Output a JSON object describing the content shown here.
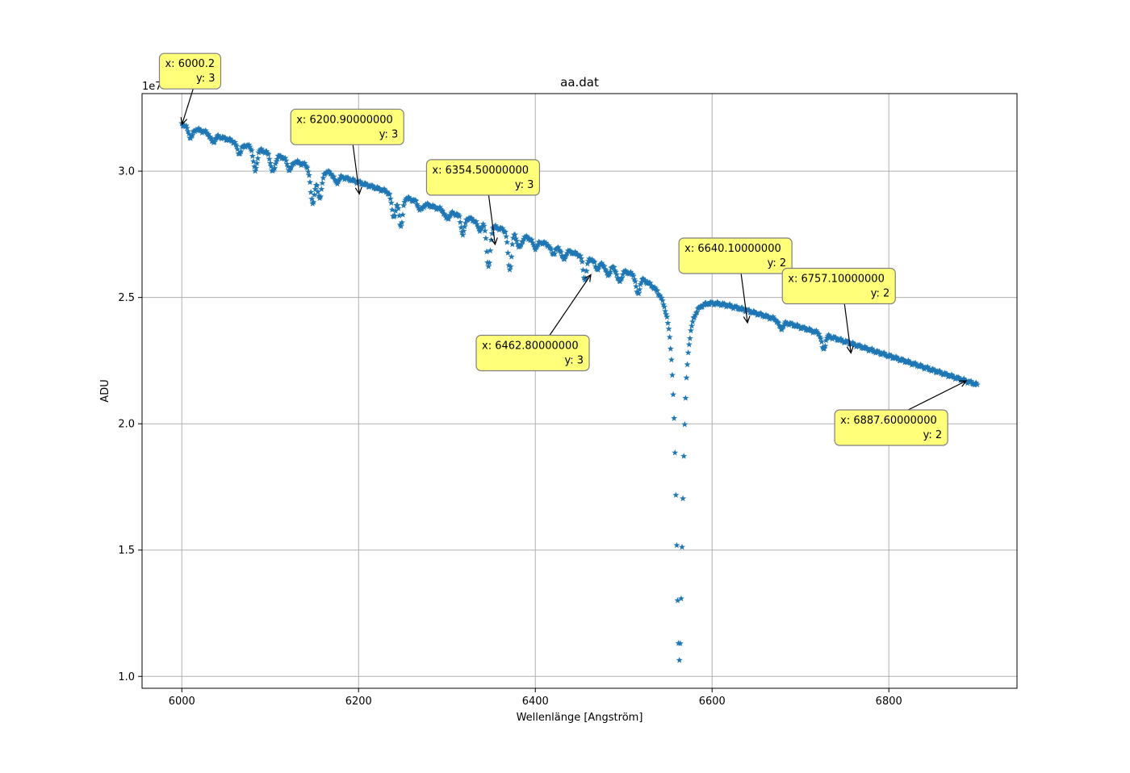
{
  "chart_data": {
    "type": "scatter",
    "title": "aa.dat",
    "xlabel": "Wellenlänge [Angström]",
    "ylabel": "ADU",
    "y_offset_label": "1e7",
    "xlim": [
      5955,
      6945
    ],
    "ylim": [
      0.953,
      3.307
    ],
    "xticks": [
      6000,
      6200,
      6400,
      6600,
      6800
    ],
    "yticks": [
      1.0,
      1.5,
      2.0,
      2.5,
      3.0
    ],
    "xtick_labels": [
      "6000",
      "6200",
      "6400",
      "6600",
      "6800"
    ],
    "ytick_labels": [
      "1.0",
      "1.5",
      "2.0",
      "2.5",
      "3.0"
    ],
    "grid": true,
    "marker": "star",
    "marker_color": "#1f77b4",
    "series_description": "Spectrum, ADU in units of 1e7; continuum falls from ~3.18 at 6000 to ~2.16 at 6900 with absorption lines, deep H-alpha line near 6563",
    "continuum": {
      "x": [
        6000,
        6900
      ],
      "y": [
        3.185,
        2.155
      ]
    },
    "dips": [
      {
        "center": 6010,
        "depth": 0.04,
        "width": 2.5
      },
      {
        "center": 6035,
        "depth": 0.03,
        "width": 2.5
      },
      {
        "center": 6065,
        "depth": 0.04,
        "width": 2.5
      },
      {
        "center": 6083,
        "depth": 0.09,
        "width": 2.0
      },
      {
        "center": 6103,
        "depth": 0.07,
        "width": 2.5
      },
      {
        "center": 6122,
        "depth": 0.04,
        "width": 2.5
      },
      {
        "center": 6148,
        "depth": 0.14,
        "width": 2.5
      },
      {
        "center": 6156,
        "depth": 0.11,
        "width": 2.5
      },
      {
        "center": 6175,
        "depth": 0.03,
        "width": 2.5
      },
      {
        "center": 6240,
        "depth": 0.09,
        "width": 2.5
      },
      {
        "center": 6248,
        "depth": 0.12,
        "width": 2.0
      },
      {
        "center": 6270,
        "depth": 0.03,
        "width": 2.5
      },
      {
        "center": 6300,
        "depth": 0.03,
        "width": 2.5
      },
      {
        "center": 6318,
        "depth": 0.07,
        "width": 2.0
      },
      {
        "center": 6337,
        "depth": 0.03,
        "width": 2.5
      },
      {
        "center": 6347,
        "depth": 0.17,
        "width": 2.0
      },
      {
        "center": 6371,
        "depth": 0.15,
        "width": 2.0
      },
      {
        "center": 6382,
        "depth": 0.05,
        "width": 2.5
      },
      {
        "center": 6400,
        "depth": 0.03,
        "width": 2.5
      },
      {
        "center": 6420,
        "depth": 0.03,
        "width": 2.5
      },
      {
        "center": 6432,
        "depth": 0.04,
        "width": 2.0
      },
      {
        "center": 6456,
        "depth": 0.09,
        "width": 2.0
      },
      {
        "center": 6470,
        "depth": 0.03,
        "width": 2.5
      },
      {
        "center": 6482,
        "depth": 0.04,
        "width": 2.5
      },
      {
        "center": 6495,
        "depth": 0.05,
        "width": 2.5
      },
      {
        "center": 6516,
        "depth": 0.07,
        "width": 2.0
      },
      {
        "center": 6563,
        "depth": 1.48,
        "width": 4.5
      },
      {
        "center": 6678,
        "depth": 0.03,
        "width": 2.5
      },
      {
        "center": 6726,
        "depth": 0.06,
        "width": 2.0
      }
    ],
    "annotations": [
      {
        "x": 6000.2,
        "y": 3.185,
        "x_text": "x: 6000.2",
        "y_text": "y: 3",
        "anchor": "above-left"
      },
      {
        "x": 6200.9,
        "y": 2.91,
        "x_text": "x: 6200.90000000",
        "y_text": "y: 3",
        "anchor": "above-left"
      },
      {
        "x": 6354.5,
        "y": 2.71,
        "x_text": "x: 6354.50000000",
        "y_text": "y: 3",
        "anchor": "above-left"
      },
      {
        "x": 6462.8,
        "y": 2.59,
        "x_text": "x: 6462.80000000",
        "y_text": "y: 3",
        "anchor": "below-left"
      },
      {
        "x": 6640.1,
        "y": 2.4,
        "x_text": "x: 6640.10000000",
        "y_text": "y: 2",
        "anchor": "above-left"
      },
      {
        "x": 6757.1,
        "y": 2.28,
        "x_text": "x: 6757.10000000",
        "y_text": "y: 2",
        "anchor": "above-left"
      },
      {
        "x": 6887.6,
        "y": 2.17,
        "x_text": "x: 6887.60000000",
        "y_text": "y: 2",
        "anchor": "below-left"
      }
    ],
    "annotation_style": {
      "box_fill": "#ffff7a",
      "box_stroke": "#7f7f7f",
      "arrow_color": "#000000"
    }
  }
}
